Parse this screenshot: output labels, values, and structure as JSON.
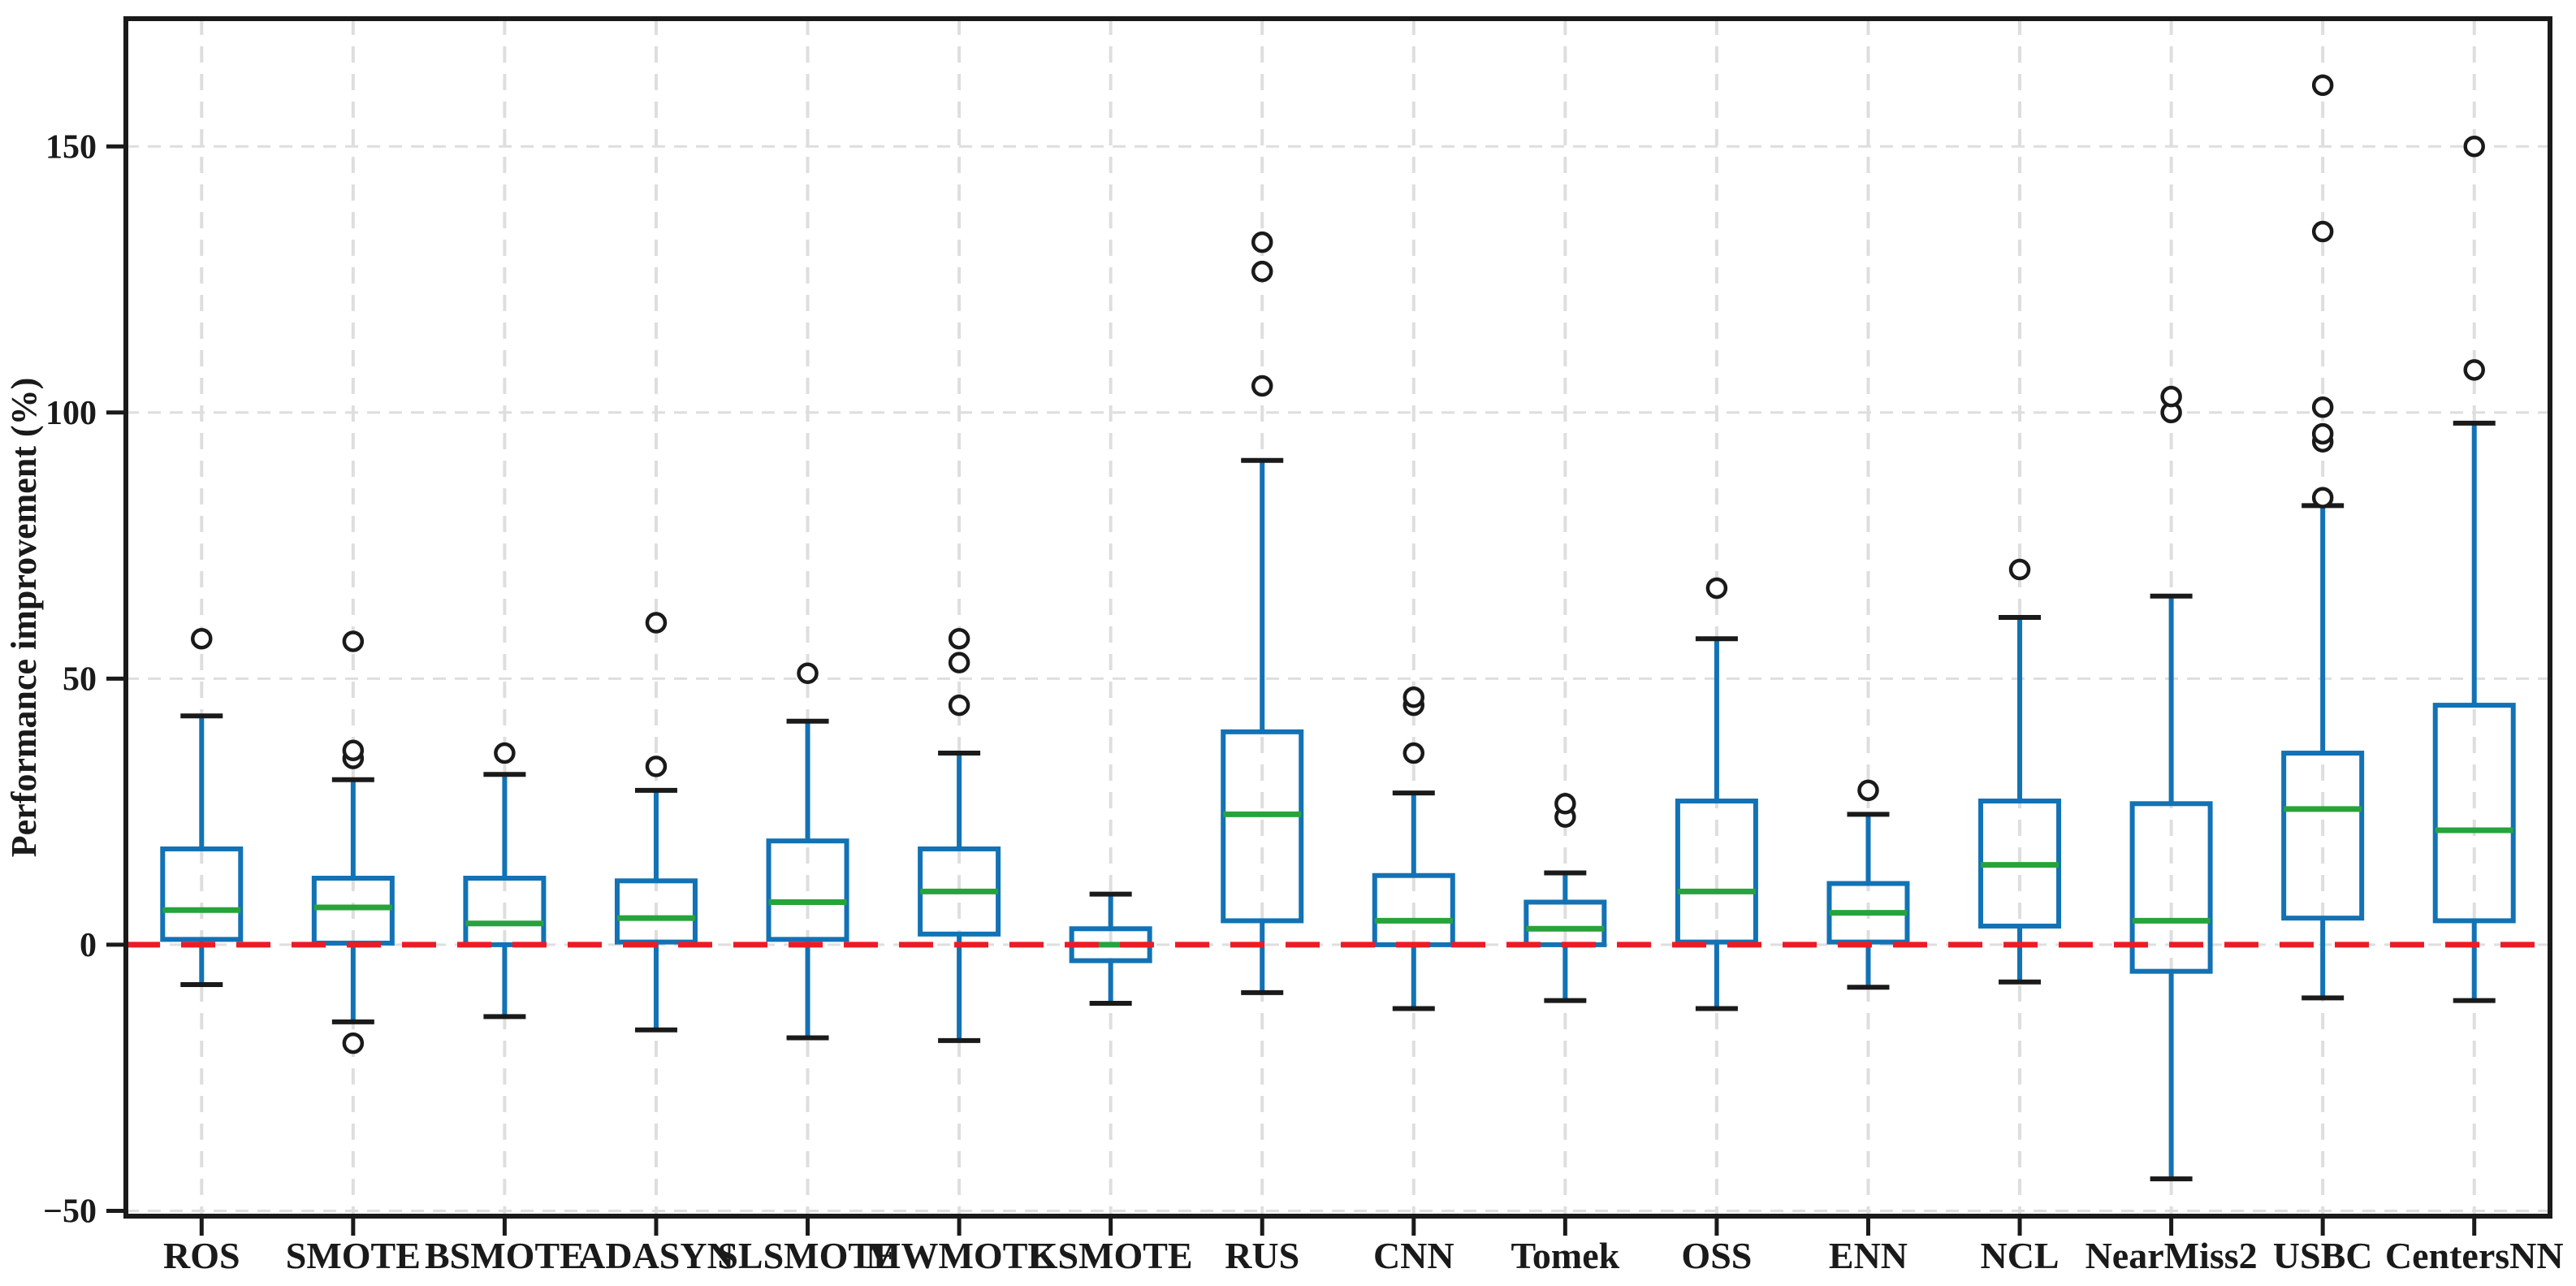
{
  "figure": {
    "background": "#ffffff",
    "ylabel": "Performance improvement (%)"
  },
  "style": {
    "box_color": "#1272b5",
    "median_color": "#27a33c",
    "whisker_color": "#1272b5",
    "cap_color": "#1a1a1a",
    "flier_color": "#1a1a1a",
    "spine_color": "#1a1a1a",
    "grid_color": "#dedede",
    "zero_line_color": "#ec1c24",
    "text_color": "#1a1a1a"
  },
  "chart_data": {
    "type": "box",
    "title": "",
    "xlabel": "",
    "ylabel": "Performance improvement (%)",
    "ylim": [
      -51,
      174
    ],
    "grid": "on",
    "legend": "none",
    "zero_line": {
      "value": 0,
      "color": "#ec1c24",
      "style": "dashed"
    },
    "yticks": [
      {
        "value": 150,
        "label": "150"
      },
      {
        "value": 100,
        "label": "100"
      },
      {
        "value": 50,
        "label": "50"
      },
      {
        "value": 0,
        "label": "0"
      },
      {
        "value": -50,
        "label": "−50"
      }
    ],
    "categories": [
      "ROS",
      "SMOTE",
      "BSMOTE",
      "ADASYN",
      "SLSMOTE",
      "MWMOTE",
      "KSMOTE",
      "RUS",
      "CNN",
      "Tomek",
      "OSS",
      "ENN",
      "NCL",
      "NearMiss2",
      "USBC",
      "CentersNN"
    ],
    "series": [
      {
        "name": "ROS",
        "whislo": -7.5,
        "q1": 1,
        "med": 6.5,
        "q3": 18,
        "whishi": 43,
        "fliers": [
          57.5
        ]
      },
      {
        "name": "SMOTE",
        "whislo": -14.5,
        "q1": 0.3,
        "med": 7,
        "q3": 12.5,
        "whishi": 31,
        "fliers": [
          -18.5,
          35,
          36.5,
          57
        ]
      },
      {
        "name": "BSMOTE",
        "whislo": -13.5,
        "q1": 0,
        "med": 4,
        "q3": 12.5,
        "whishi": 32,
        "fliers": [
          36
        ]
      },
      {
        "name": "ADASYN",
        "whislo": -16,
        "q1": 0.5,
        "med": 5,
        "q3": 12,
        "whishi": 29,
        "fliers": [
          33.5,
          60.5
        ]
      },
      {
        "name": "SLSMOTE",
        "whislo": -17.5,
        "q1": 1,
        "med": 8,
        "q3": 19.5,
        "whishi": 42,
        "fliers": [
          51
        ]
      },
      {
        "name": "MWMOTE",
        "whislo": -18,
        "q1": 2,
        "med": 10,
        "q3": 18,
        "whishi": 36,
        "fliers": [
          45,
          53,
          57.5
        ]
      },
      {
        "name": "KSMOTE",
        "whislo": -11,
        "q1": -3,
        "med": 0,
        "q3": 3,
        "whishi": 9.5,
        "fliers": []
      },
      {
        "name": "RUS",
        "whislo": -9,
        "q1": 4.5,
        "med": 24.5,
        "q3": 40,
        "whishi": 91,
        "fliers": [
          105,
          126.5,
          132
        ]
      },
      {
        "name": "CNN",
        "whislo": -12,
        "q1": 0,
        "med": 4.5,
        "q3": 13,
        "whishi": 28.5,
        "fliers": [
          36,
          45,
          46.5
        ]
      },
      {
        "name": "Tomek",
        "whislo": -10.5,
        "q1": 0,
        "med": 3,
        "q3": 8,
        "whishi": 13.5,
        "fliers": [
          24,
          26.5
        ]
      },
      {
        "name": "OSS",
        "whislo": -12,
        "q1": 0.5,
        "med": 10,
        "q3": 27,
        "whishi": 57.5,
        "fliers": [
          67
        ]
      },
      {
        "name": "ENN",
        "whislo": -8,
        "q1": 0.5,
        "med": 6,
        "q3": 11.5,
        "whishi": 24.5,
        "fliers": [
          29
        ]
      },
      {
        "name": "NCL",
        "whislo": -7,
        "q1": 3.5,
        "med": 15,
        "q3": 27,
        "whishi": 61.5,
        "fliers": [
          70.5
        ]
      },
      {
        "name": "NearMiss2",
        "whislo": -44,
        "q1": -5,
        "med": 4.5,
        "q3": 26.5,
        "whishi": 65.5,
        "fliers": [
          100,
          103
        ]
      },
      {
        "name": "USBC",
        "whislo": -10,
        "q1": 5,
        "med": 25.5,
        "q3": 36,
        "whishi": 82.5,
        "fliers": [
          84,
          94.5,
          96,
          101,
          134,
          161.5
        ]
      },
      {
        "name": "CentersNN",
        "whislo": -10.5,
        "q1": 4.5,
        "med": 21.5,
        "q3": 45,
        "whishi": 98,
        "fliers": [
          108,
          150
        ]
      }
    ]
  }
}
